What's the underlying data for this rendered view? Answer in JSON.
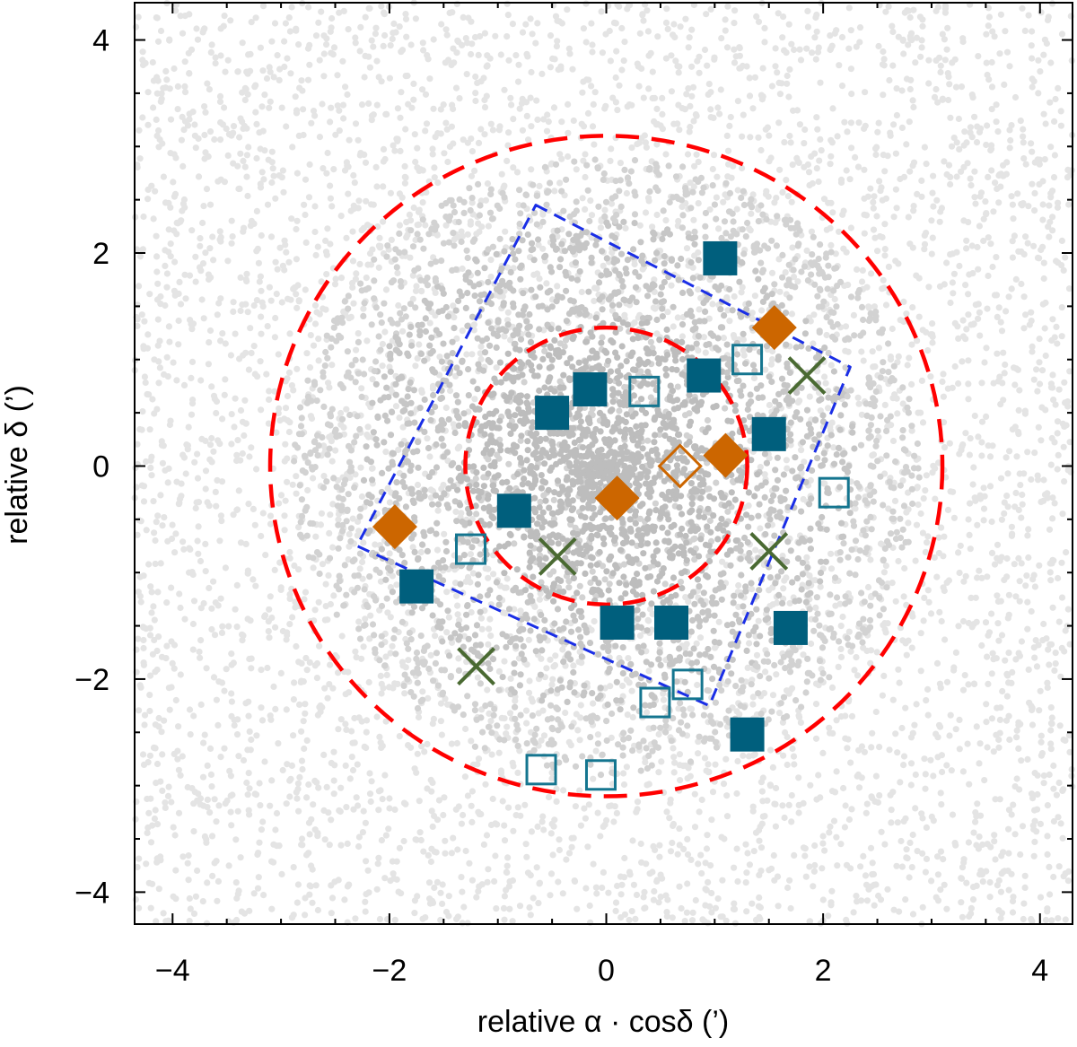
{
  "chart_data": {
    "type": "scatter",
    "title": "",
    "xlabel": "relative α · cosδ (’)",
    "ylabel": "relative δ (’)",
    "xlim": [
      -4.35,
      4.3
    ],
    "ylim": [
      -4.3,
      4.35
    ],
    "x_ticks": [
      -4,
      -2,
      0,
      2,
      4
    ],
    "y_ticks": [
      -4,
      -2,
      0,
      2,
      4
    ],
    "x_tick_labels": [
      "−4",
      "−2",
      "0",
      "2",
      "4"
    ],
    "y_tick_labels": [
      "−4",
      "−2",
      "0",
      "2",
      "4"
    ],
    "background_field": {
      "description": "grey field-star points; density increases toward centre",
      "color_outer": "#e4e4e4",
      "color_inner": "#bdbdbd"
    },
    "circles": [
      {
        "name": "inner radius",
        "center": [
          0,
          0
        ],
        "radius": 1.3,
        "color": "#ff0000",
        "style": "dashed"
      },
      {
        "name": "outer radius",
        "center": [
          0,
          0
        ],
        "radius": 3.1,
        "color": "#ff0000",
        "style": "dashed"
      }
    ],
    "footprint_polygon": {
      "color": "#1a2ee6",
      "style": "dashed",
      "vertices": [
        [
          -0.65,
          2.45
        ],
        [
          2.25,
          0.93
        ],
        [
          0.95,
          -2.25
        ],
        [
          -2.3,
          -0.75
        ]
      ]
    },
    "series": [
      {
        "name": "filled squares",
        "marker": "square-filled",
        "color": "#005f7d",
        "points": [
          [
            1.05,
            1.95
          ],
          [
            -0.15,
            0.72
          ],
          [
            -0.5,
            0.5
          ],
          [
            0.9,
            0.85
          ],
          [
            1.5,
            0.3
          ],
          [
            -0.85,
            -0.42
          ],
          [
            -1.75,
            -1.13
          ],
          [
            0.1,
            -1.47
          ],
          [
            0.6,
            -1.47
          ],
          [
            1.7,
            -1.52
          ],
          [
            1.3,
            -2.52
          ]
        ]
      },
      {
        "name": "open squares",
        "marker": "square-open",
        "color": "#14758f",
        "points": [
          [
            0.35,
            0.7
          ],
          [
            1.3,
            1.0
          ],
          [
            2.1,
            -0.25
          ],
          [
            -1.25,
            -0.78
          ],
          [
            0.45,
            -2.22
          ],
          [
            0.75,
            -2.05
          ],
          [
            -0.6,
            -2.85
          ],
          [
            -0.05,
            -2.9
          ]
        ]
      },
      {
        "name": "filled diamonds",
        "marker": "diamond-filled",
        "color": "#cc6600",
        "points": [
          [
            1.55,
            1.3
          ],
          [
            1.1,
            0.1
          ],
          [
            0.1,
            -0.3
          ],
          [
            -1.95,
            -0.57
          ]
        ]
      },
      {
        "name": "open diamonds",
        "marker": "diamond-open",
        "color": "#cc6600",
        "points": [
          [
            0.68,
            0.0
          ]
        ]
      },
      {
        "name": "crosses",
        "marker": "x",
        "color": "#4a6a32",
        "points": [
          [
            1.85,
            0.85
          ],
          [
            -0.45,
            -0.85
          ],
          [
            1.5,
            -0.8
          ],
          [
            -1.2,
            -1.88
          ]
        ]
      }
    ],
    "legend": "none",
    "grid": false
  }
}
